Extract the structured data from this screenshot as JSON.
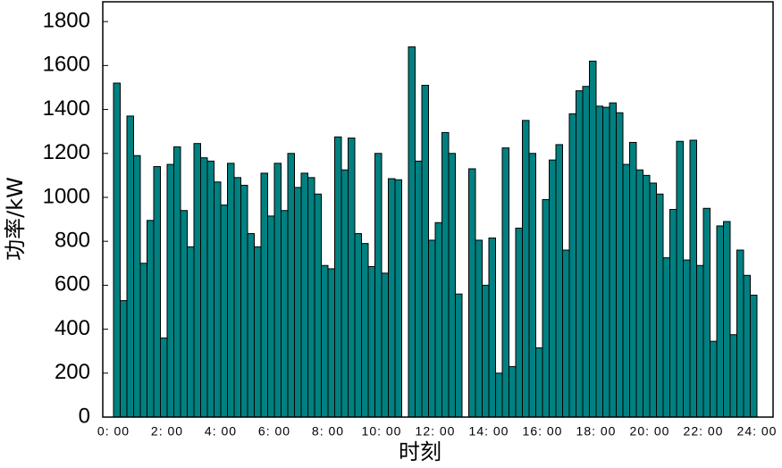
{
  "chart_data": {
    "type": "bar",
    "x_label": "时刻",
    "y_label": "功率/kW",
    "x": [
      0,
      0.25,
      0.5,
      0.75,
      1,
      1.25,
      1.5,
      1.75,
      2,
      2.25,
      2.5,
      2.75,
      3,
      3.25,
      3.5,
      3.75,
      4,
      4.25,
      4.5,
      4.75,
      5,
      5.25,
      5.5,
      5.75,
      6,
      6.25,
      6.5,
      6.75,
      7,
      7.25,
      7.5,
      7.75,
      8,
      8.25,
      8.5,
      8.75,
      9,
      9.25,
      9.5,
      9.75,
      10,
      10.25,
      10.5,
      10.75,
      11,
      11.25,
      11.5,
      11.75,
      12,
      12.25,
      12.5,
      12.75,
      13,
      13.25,
      13.5,
      13.75,
      14,
      14.25,
      14.5,
      14.75,
      15,
      15.25,
      15.5,
      15.75,
      16,
      16.25,
      16.5,
      16.75,
      17,
      17.25,
      17.5,
      17.75,
      18,
      18.25,
      18.5,
      18.75,
      19,
      19.25,
      19.5,
      19.75,
      20,
      20.25,
      20.5,
      20.75,
      21,
      21.25,
      21.5,
      21.75,
      22,
      22.25,
      22.5,
      22.75,
      23,
      23.25,
      23.5,
      23.75
    ],
    "values": [
      1520,
      530,
      1370,
      1190,
      700,
      895,
      1140,
      360,
      1150,
      1230,
      940,
      775,
      1245,
      1180,
      1165,
      1070,
      965,
      1155,
      1090,
      1055,
      835,
      775,
      1110,
      915,
      1155,
      940,
      1200,
      1045,
      1110,
      1090,
      1015,
      690,
      675,
      1275,
      1125,
      1270,
      835,
      790,
      685,
      1200,
      655,
      1085,
      1080,
      0,
      1685,
      1165,
      1510,
      805,
      885,
      1295,
      1200,
      560,
      0,
      1130,
      805,
      600,
      815,
      200,
      1225,
      230,
      860,
      1350,
      1200,
      315,
      990,
      1170,
      1240,
      760,
      1380,
      1485,
      1505,
      1620,
      1415,
      1410,
      1430,
      1385,
      1150,
      1250,
      1125,
      1100,
      1065,
      1015,
      725,
      945,
      1255,
      715,
      1260,
      690,
      950,
      345,
      870,
      890,
      375,
      760,
      645,
      555
    ],
    "color": "#008080",
    "xlim": [
      -0.4,
      24.6
    ],
    "xticks": [
      {
        "value": 0,
        "label": "0: 00"
      },
      {
        "value": 2,
        "label": "2: 00"
      },
      {
        "value": 4,
        "label": "4: 00"
      },
      {
        "value": 6,
        "label": "6: 00"
      },
      {
        "value": 8,
        "label": "8: 00"
      },
      {
        "value": 10,
        "label": "10: 00"
      },
      {
        "value": 12,
        "label": "12: 00"
      },
      {
        "value": 14,
        "label": "14: 00"
      },
      {
        "value": 16,
        "label": "16: 00"
      },
      {
        "value": 18,
        "label": "18: 00"
      },
      {
        "value": 20,
        "label": "20: 00"
      },
      {
        "value": 22,
        "label": "22: 00"
      },
      {
        "value": 24,
        "label": "24: 00"
      }
    ],
    "ylim": [
      0,
      1890
    ],
    "yticks": [
      0,
      200,
      400,
      600,
      800,
      1000,
      1200,
      1400,
      1600,
      1800
    ],
    "grid": false
  }
}
